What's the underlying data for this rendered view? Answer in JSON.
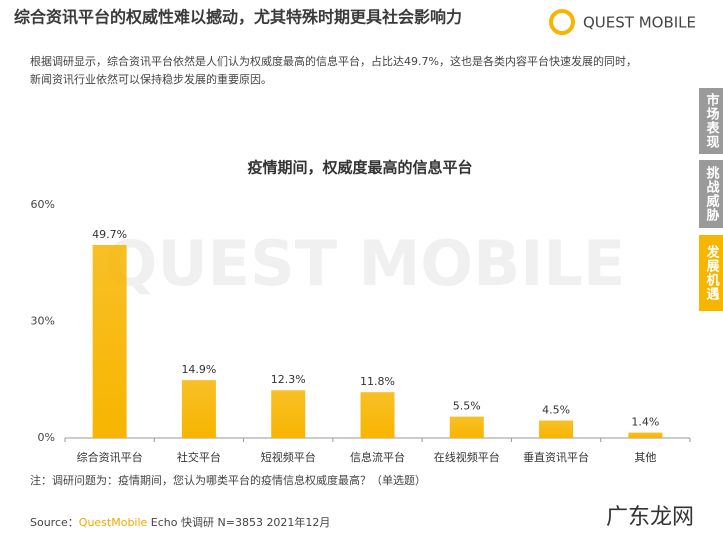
{
  "header": {
    "title": "综合资讯平台的权威性难以撼动，尤其特殊时期更具社会影响力",
    "logo": "QUEST MOBILE",
    "paragraph": [
      "根据调研显示，综合资讯平台依然是人们认为权威度最高的信息平台，占比达49.7%，这也是各类内容平台快速发展的同时，",
      "新闻资讯行业依然可以保持稳步发展的重要原因。"
    ]
  },
  "side_tabs": [
    "市场表现",
    "挑战威胁",
    "发展机遇"
  ],
  "watermark": "QUEST MOBILE",
  "chart_data": {
    "type": "bar",
    "title": "疫情期间，权威度最高的信息平台",
    "categories": [
      "综合资讯平台",
      "社交平台",
      "短视频平台",
      "信息流平台",
      "在线视频平台",
      "垂直资讯平台",
      "其他"
    ],
    "values": [
      49.7,
      14.9,
      12.3,
      11.8,
      5.5,
      4.5,
      1.4
    ],
    "value_labels": [
      "49.7%",
      "14.9%",
      "12.3%",
      "11.8%",
      "5.5%",
      "4.5%",
      "1.4%"
    ],
    "color": "#f7b500",
    "ylim": [
      0,
      60
    ],
    "yticks": [
      {
        "value": 0,
        "label": "0%"
      },
      {
        "value": 30,
        "label": "30%"
      },
      {
        "value": 60,
        "label": "60%"
      }
    ],
    "grid": false
  },
  "note": "注：调研问题为：疫情期间，您认为哪类平台的疫情信息权威度最高？（单选题）",
  "source": {
    "prefix": "Source：",
    "brand": "QuestMobile",
    "rest": " Echo 快调研 N=3853 2021年12月"
  },
  "stamp": "广东龙网"
}
